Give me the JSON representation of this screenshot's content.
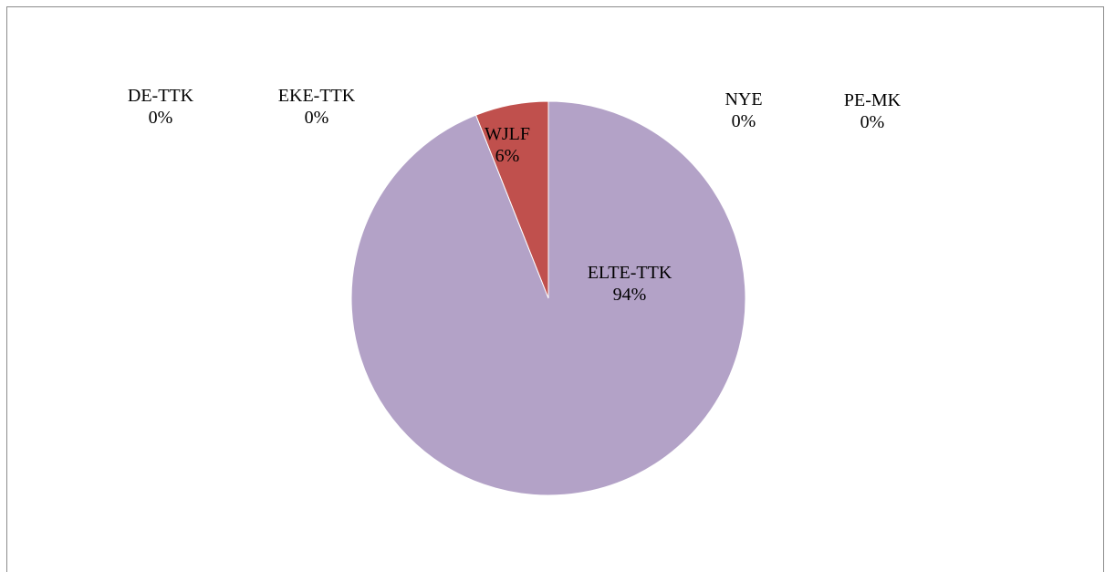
{
  "chart_data": {
    "type": "pie",
    "title": "",
    "slices": [
      {
        "name": "DE-TTK",
        "value": 0,
        "label": "0%",
        "color": "#4f81bd"
      },
      {
        "name": "EKE-TTK",
        "value": 0,
        "label": "0%",
        "color": "#8064a2"
      },
      {
        "name": "WJLF",
        "value": 6,
        "label": "6%",
        "color": "#c0504d"
      },
      {
        "name": "ELTE-TTK",
        "value": 94,
        "label": "94%",
        "color": "#b3a2c7"
      },
      {
        "name": "NYE",
        "value": 0,
        "label": "0%",
        "color": "#9bbb59"
      },
      {
        "name": "PE-MK",
        "value": 0,
        "label": "0%",
        "color": "#4bacc6"
      }
    ],
    "start_angle_deg": 0,
    "direction": "counterclockwise",
    "legend": "none",
    "data_labels": "category name and percentage"
  }
}
